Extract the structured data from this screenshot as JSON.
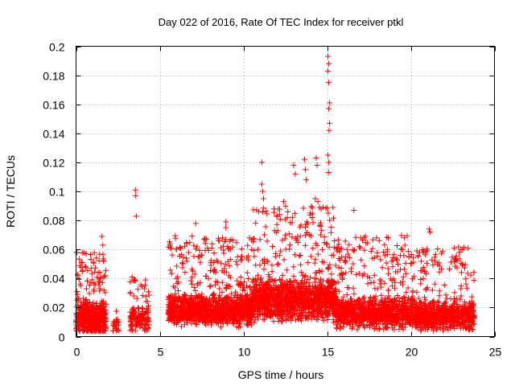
{
  "chart_data": {
    "type": "scatter",
    "title": "Day 022 of 2016, Rate Of TEC Index for receiver ptkl",
    "xlabel": "GPS time / hours",
    "ylabel": "ROTI / TECUs",
    "xlim": [
      0,
      25
    ],
    "ylim": [
      0,
      0.2
    ],
    "xticks": [
      0,
      5,
      10,
      15,
      20,
      25
    ],
    "yticks": [
      0,
      0.02,
      0.04,
      0.06,
      0.08,
      0.1,
      0.12,
      0.14,
      0.16,
      0.18,
      0.2
    ],
    "grid": true,
    "marker": "+",
    "color": "#ff0000",
    "series": [
      {
        "name": "ROTI",
        "density_segments": [
          {
            "x0": 0.0,
            "x1": 1.8,
            "n": 500,
            "base": 0.012,
            "spread": 0.014,
            "peak": 0.058
          },
          {
            "x0": 2.2,
            "x1": 2.6,
            "n": 25,
            "base": 0.008,
            "spread": 0.006,
            "peak": 0.021
          },
          {
            "x0": 3.2,
            "x1": 4.4,
            "n": 140,
            "base": 0.012,
            "spread": 0.01,
            "peak": 0.04
          },
          {
            "x0": 5.5,
            "x1": 10.5,
            "n": 1200,
            "base": 0.018,
            "spread": 0.012,
            "peak": 0.07
          },
          {
            "x0": 10.5,
            "x1": 15.5,
            "n": 1300,
            "base": 0.025,
            "spread": 0.016,
            "peak": 0.09
          },
          {
            "x0": 15.5,
            "x1": 20.5,
            "n": 1100,
            "base": 0.016,
            "spread": 0.012,
            "peak": 0.07
          },
          {
            "x0": 20.5,
            "x1": 23.8,
            "n": 700,
            "base": 0.014,
            "spread": 0.011,
            "peak": 0.062
          }
        ],
        "notable_points": [
          {
            "x": 0.05,
            "y": 0.058
          },
          {
            "x": 0.6,
            "y": 0.057
          },
          {
            "x": 1.55,
            "y": 0.069
          },
          {
            "x": 1.6,
            "y": 0.063
          },
          {
            "x": 3.55,
            "y": 0.101
          },
          {
            "x": 3.55,
            "y": 0.097
          },
          {
            "x": 3.6,
            "y": 0.083
          },
          {
            "x": 3.35,
            "y": 0.041
          },
          {
            "x": 4.15,
            "y": 0.039
          },
          {
            "x": 7.15,
            "y": 0.078
          },
          {
            "x": 8.95,
            "y": 0.079
          },
          {
            "x": 8.95,
            "y": 0.075
          },
          {
            "x": 11.1,
            "y": 0.12
          },
          {
            "x": 11.1,
            "y": 0.105
          },
          {
            "x": 11.15,
            "y": 0.1
          },
          {
            "x": 11.2,
            "y": 0.095
          },
          {
            "x": 12.4,
            "y": 0.093
          },
          {
            "x": 13.0,
            "y": 0.118
          },
          {
            "x": 13.1,
            "y": 0.112
          },
          {
            "x": 13.65,
            "y": 0.122
          },
          {
            "x": 13.7,
            "y": 0.115
          },
          {
            "x": 13.75,
            "y": 0.108
          },
          {
            "x": 14.35,
            "y": 0.123
          },
          {
            "x": 14.4,
            "y": 0.118
          },
          {
            "x": 14.3,
            "y": 0.095
          },
          {
            "x": 14.45,
            "y": 0.093
          },
          {
            "x": 15.05,
            "y": 0.193
          },
          {
            "x": 15.1,
            "y": 0.188
          },
          {
            "x": 15.05,
            "y": 0.183
          },
          {
            "x": 15.1,
            "y": 0.175
          },
          {
            "x": 15.15,
            "y": 0.161
          },
          {
            "x": 15.1,
            "y": 0.157
          },
          {
            "x": 15.15,
            "y": 0.147
          },
          {
            "x": 15.12,
            "y": 0.142
          },
          {
            "x": 15.05,
            "y": 0.125
          },
          {
            "x": 15.1,
            "y": 0.12
          },
          {
            "x": 15.08,
            "y": 0.113
          },
          {
            "x": 16.6,
            "y": 0.087
          },
          {
            "x": 17.95,
            "y": 0.068
          },
          {
            "x": 21.1,
            "y": 0.074
          },
          {
            "x": 21.15,
            "y": 0.072
          },
          {
            "x": 22.6,
            "y": 0.061
          },
          {
            "x": 23.0,
            "y": 0.06
          },
          {
            "x": 23.1,
            "y": 0.049
          },
          {
            "x": 18.6,
            "y": 0.06
          }
        ]
      }
    ]
  }
}
